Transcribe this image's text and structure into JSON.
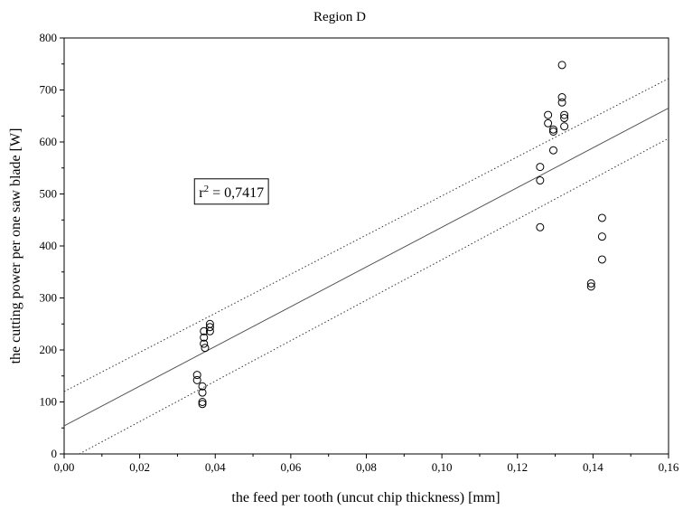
{
  "chart_data": {
    "type": "scatter",
    "title": "Region D",
    "xlabel": "the feed per tooth (uncut chip thickness) [mm]",
    "ylabel": "the cutting power per one saw blade [W]",
    "xlim": [
      0,
      0.16
    ],
    "ylim": [
      0,
      800
    ],
    "xticks": [
      "0,00",
      "0,02",
      "0,04",
      "0,06",
      "0,08",
      "0,10",
      "0,12",
      "0,14",
      "0,16"
    ],
    "yticks": [
      "0",
      "100",
      "200",
      "300",
      "400",
      "500",
      "600",
      "700",
      "800"
    ],
    "grid": false,
    "annotation": {
      "prefix": "r",
      "superscript": "2",
      "suffix": " = 0,7417",
      "x": 0.0345,
      "y": 503
    },
    "points": [
      {
        "x": 0.0352,
        "y": 152
      },
      {
        "x": 0.0352,
        "y": 142
      },
      {
        "x": 0.0366,
        "y": 130
      },
      {
        "x": 0.0366,
        "y": 118
      },
      {
        "x": 0.0366,
        "y": 100
      },
      {
        "x": 0.0366,
        "y": 96
      },
      {
        "x": 0.037,
        "y": 236
      },
      {
        "x": 0.037,
        "y": 224
      },
      {
        "x": 0.037,
        "y": 212
      },
      {
        "x": 0.0373,
        "y": 204
      },
      {
        "x": 0.0386,
        "y": 250
      },
      {
        "x": 0.0386,
        "y": 244
      },
      {
        "x": 0.0386,
        "y": 236
      },
      {
        "x": 0.126,
        "y": 552
      },
      {
        "x": 0.126,
        "y": 526
      },
      {
        "x": 0.126,
        "y": 436
      },
      {
        "x": 0.1281,
        "y": 652
      },
      {
        "x": 0.1281,
        "y": 636
      },
      {
        "x": 0.1295,
        "y": 624
      },
      {
        "x": 0.1295,
        "y": 620
      },
      {
        "x": 0.1295,
        "y": 584
      },
      {
        "x": 0.1318,
        "y": 748
      },
      {
        "x": 0.1318,
        "y": 686
      },
      {
        "x": 0.1318,
        "y": 676
      },
      {
        "x": 0.1324,
        "y": 652
      },
      {
        "x": 0.1324,
        "y": 646
      },
      {
        "x": 0.1324,
        "y": 630
      },
      {
        "x": 0.1395,
        "y": 328
      },
      {
        "x": 0.1395,
        "y": 322
      },
      {
        "x": 0.1424,
        "y": 454
      },
      {
        "x": 0.1424,
        "y": 418
      },
      {
        "x": 0.1424,
        "y": 374
      }
    ],
    "regression": {
      "intercept": 54,
      "slope": 3820
    },
    "confidence_band": {
      "upper": [
        [
          0,
          120
        ],
        [
          0.16,
          722
        ]
      ],
      "lower": [
        [
          0.004,
          0
        ],
        [
          0.16,
          607
        ]
      ]
    }
  }
}
